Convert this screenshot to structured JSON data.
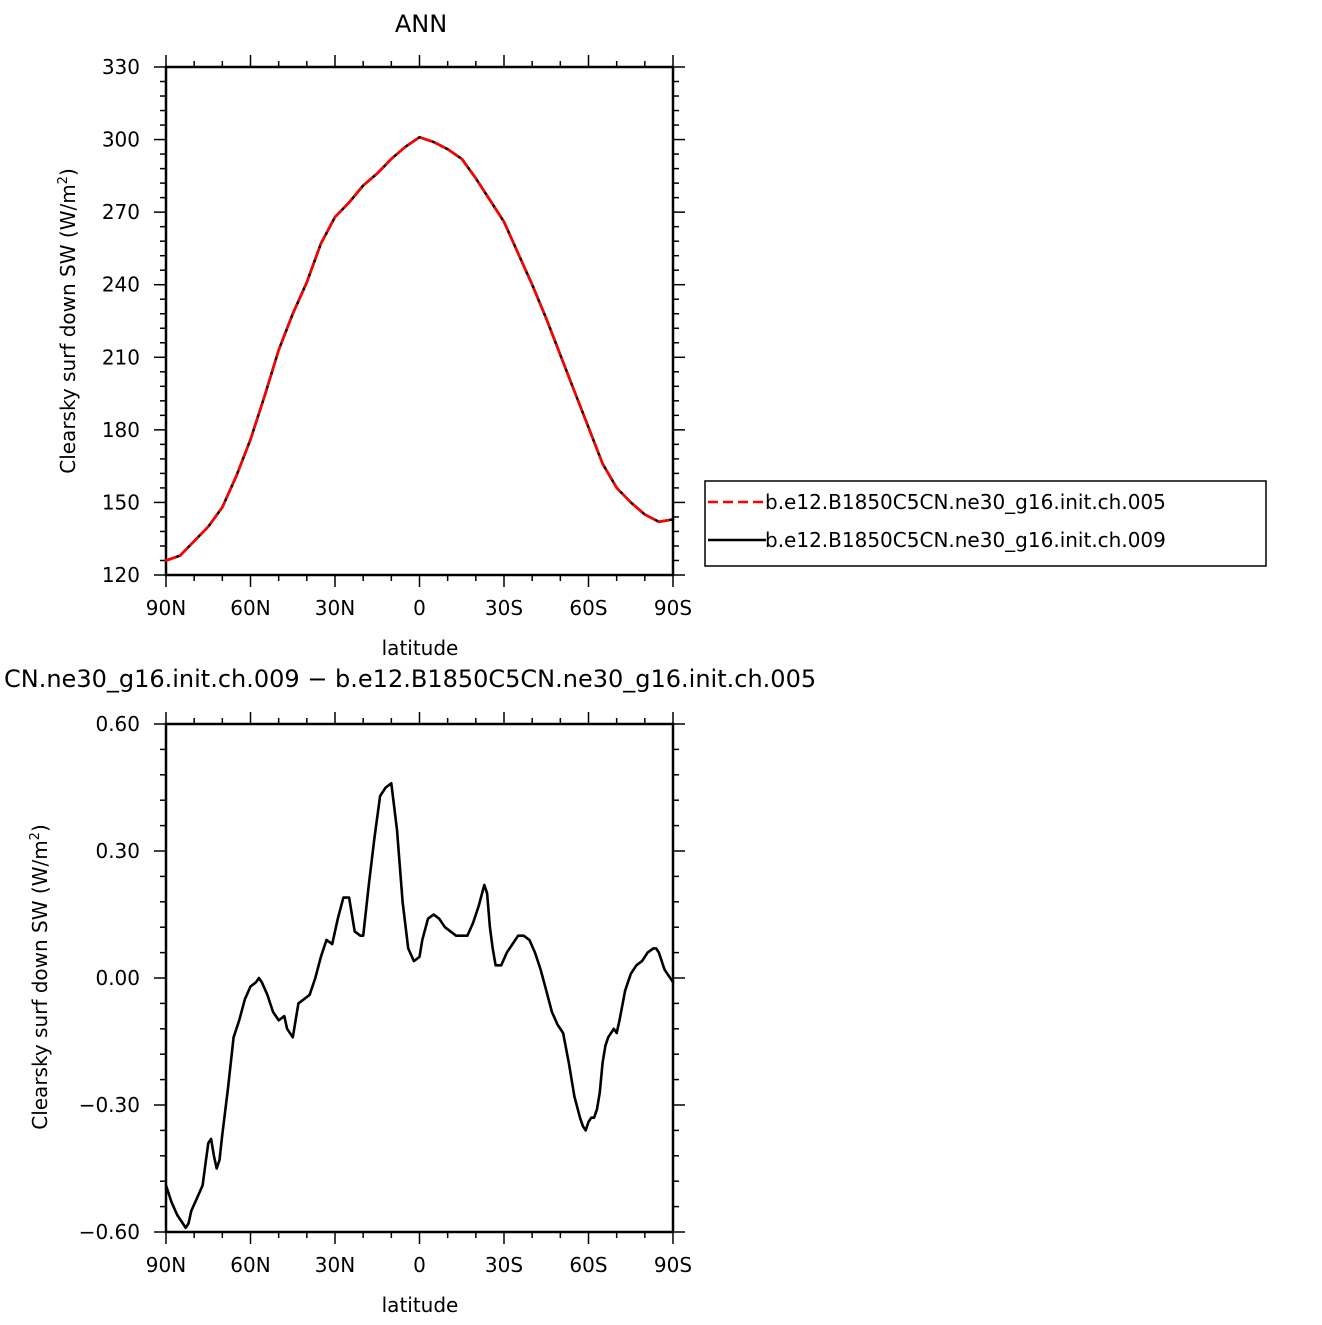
{
  "chart_data": [
    {
      "type": "line",
      "title": "ANN",
      "xlabel": "latitude",
      "ylabel": "Clearsky surf down SW (W/m²)",
      "ylabel_main": "Clearsky surf down SW (W/m",
      "ylabel_sup": "2",
      "ylabel_close": ")",
      "xlim": [
        -90,
        90
      ],
      "ylim": [
        120,
        330
      ],
      "xticks": [
        -90,
        -60,
        -30,
        0,
        30,
        60,
        90
      ],
      "xtick_labels": [
        "90N",
        "60N",
        "30N",
        "0",
        "30S",
        "60S",
        "90S"
      ],
      "yticks": [
        120,
        150,
        180,
        210,
        240,
        270,
        300,
        330
      ],
      "ytick_labels": [
        "120",
        "150",
        "180",
        "210",
        "240",
        "270",
        "300",
        "330"
      ],
      "legend": "right",
      "series": [
        {
          "name": "b.e12.B1850C5CN.ne30_g16.init.ch.005",
          "color": "#ff0000",
          "dash": "dashed",
          "x": [
            -90,
            -85,
            -80,
            -75,
            -70,
            -65,
            -60,
            -55,
            -50,
            -45,
            -40,
            -35,
            -30,
            -25,
            -20,
            -15,
            -10,
            -5,
            0,
            5,
            10,
            15,
            20,
            25,
            30,
            35,
            40,
            45,
            50,
            55,
            60,
            65,
            70,
            75,
            80,
            85,
            90
          ],
          "y": [
            126,
            128,
            134,
            140,
            148,
            161,
            176,
            194,
            213,
            228,
            241,
            257,
            268,
            274,
            281,
            286,
            292,
            297,
            301,
            299,
            296,
            292,
            284,
            275,
            266,
            253,
            240,
            226,
            211,
            196,
            181,
            166,
            156,
            150,
            145,
            142,
            143
          ]
        },
        {
          "name": "b.e12.B1850C5CN.ne30_g16.init.ch.009",
          "color": "#000000",
          "dash": "solid",
          "x": [
            -90,
            -85,
            -80,
            -75,
            -70,
            -65,
            -60,
            -55,
            -50,
            -45,
            -40,
            -35,
            -30,
            -25,
            -20,
            -15,
            -10,
            -5,
            0,
            5,
            10,
            15,
            20,
            25,
            30,
            35,
            40,
            45,
            50,
            55,
            60,
            65,
            70,
            75,
            80,
            85,
            90
          ],
          "y": [
            126,
            128,
            134,
            140,
            148,
            161,
            176,
            194,
            213,
            228,
            241,
            257,
            268,
            274,
            281,
            286,
            292,
            297,
            301,
            299,
            296,
            292,
            284,
            275,
            266,
            253,
            240,
            226,
            211,
            196,
            181,
            166,
            156,
            150,
            145,
            142,
            143
          ]
        }
      ]
    },
    {
      "type": "line",
      "title": "CN.ne30_g16.init.ch.009 − b.e12.B1850C5CN.ne30_g16.init.ch.005",
      "xlabel": "latitude",
      "ylabel": "Clearsky surf down SW (W/m²)",
      "ylabel_main": "Clearsky surf down SW (W/m",
      "ylabel_sup": "2",
      "ylabel_close": ")",
      "xlim": [
        -90,
        90
      ],
      "ylim": [
        -0.6,
        0.6
      ],
      "xticks": [
        -90,
        -60,
        -30,
        0,
        30,
        60,
        90
      ],
      "xtick_labels": [
        "90N",
        "60N",
        "30N",
        "0",
        "30S",
        "60S",
        "90S"
      ],
      "yticks": [
        -0.6,
        -0.3,
        0.0,
        0.3,
        0.6
      ],
      "ytick_labels": [
        "−0.60",
        "−0.30",
        "0.00",
        "0.30",
        "0.60"
      ],
      "series": [
        {
          "color": "#000000",
          "dash": "solid",
          "x": [
            -90,
            -88,
            -86,
            -84,
            -83,
            -82,
            -81,
            -79,
            -77,
            -76,
            -75,
            -74,
            -73,
            -72,
            -71,
            -70,
            -68,
            -66,
            -64,
            -62,
            -60,
            -58,
            -57,
            -56,
            -54,
            -52,
            -50,
            -48,
            -47,
            -45,
            -43,
            -41,
            -39,
            -37,
            -35,
            -33,
            -31,
            -29,
            -27,
            -25,
            -23,
            -21,
            -20,
            -18,
            -16,
            -14,
            -12,
            -10,
            -8,
            -6,
            -4,
            -2,
            0,
            1,
            3,
            5,
            7,
            9,
            11,
            13,
            15,
            17,
            19,
            21,
            23,
            24,
            25,
            26,
            27,
            29,
            31,
            33,
            35,
            37,
            39,
            41,
            43,
            45,
            47,
            49,
            51,
            53,
            55,
            57,
            58,
            59,
            60,
            61,
            62,
            63,
            64,
            65,
            66,
            67,
            69,
            70,
            71,
            73,
            75,
            77,
            79,
            81,
            83,
            84,
            85,
            86,
            87,
            88,
            90
          ],
          "y": [
            -0.49,
            -0.53,
            -0.56,
            -0.58,
            -0.59,
            -0.58,
            -0.55,
            -0.52,
            -0.49,
            -0.44,
            -0.39,
            -0.38,
            -0.42,
            -0.45,
            -0.43,
            -0.37,
            -0.26,
            -0.14,
            -0.1,
            -0.05,
            -0.02,
            -0.01,
            0.0,
            -0.01,
            -0.04,
            -0.08,
            -0.1,
            -0.09,
            -0.12,
            -0.14,
            -0.06,
            -0.05,
            -0.04,
            0.0,
            0.05,
            0.09,
            0.08,
            0.14,
            0.19,
            0.19,
            0.11,
            0.1,
            0.1,
            0.22,
            0.33,
            0.43,
            0.45,
            0.46,
            0.35,
            0.18,
            0.07,
            0.04,
            0.05,
            0.09,
            0.14,
            0.15,
            0.14,
            0.12,
            0.11,
            0.1,
            0.1,
            0.1,
            0.13,
            0.17,
            0.22,
            0.2,
            0.12,
            0.07,
            0.03,
            0.03,
            0.06,
            0.08,
            0.1,
            0.1,
            0.09,
            0.06,
            0.02,
            -0.03,
            -0.08,
            -0.11,
            -0.13,
            -0.2,
            -0.28,
            -0.33,
            -0.35,
            -0.36,
            -0.34,
            -0.33,
            -0.33,
            -0.31,
            -0.27,
            -0.2,
            -0.16,
            -0.14,
            -0.12,
            -0.13,
            -0.1,
            -0.03,
            0.01,
            0.03,
            0.04,
            0.06,
            0.07,
            0.07,
            0.06,
            0.04,
            0.02,
            0.01,
            -0.01
          ]
        }
      ]
    }
  ]
}
